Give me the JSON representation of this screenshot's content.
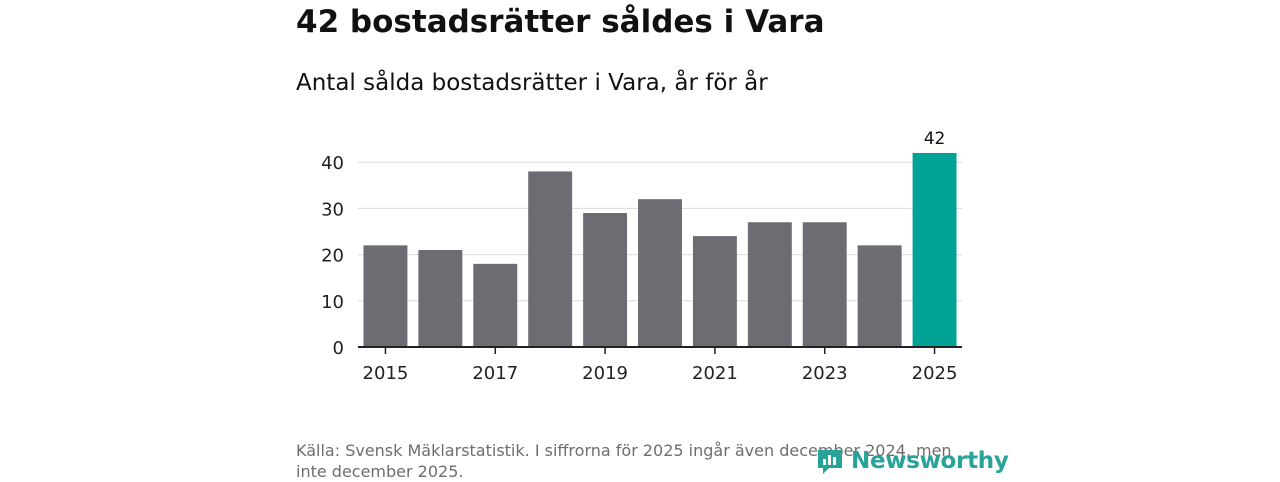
{
  "title": "42 bostadsrätter såldes i Vara",
  "subtitle": "Antal sålda bostadsrätter i Vara, år för år",
  "source": "Källa: Svensk Mäklarstatistik. I siffrorna för 2025 ingår även december 2024, men inte december 2025.",
  "logo": {
    "text": "Newsworthy",
    "icon": "newsworthy-logo-icon"
  },
  "colors": {
    "bar": "#6d6c72",
    "highlight": "#00a396",
    "grid": "#dcdcdc",
    "axis": "#222222",
    "logo": "#27a39a"
  },
  "chart_data": {
    "type": "bar",
    "title": "Antal sålda bostadsrätter i Vara, år för år",
    "categories": [
      "2015",
      "2016",
      "2017",
      "2018",
      "2019",
      "2020",
      "2021",
      "2022",
      "2023",
      "2024",
      "2025"
    ],
    "values": [
      22,
      21,
      18,
      38,
      29,
      32,
      24,
      27,
      27,
      22,
      42
    ],
    "highlight_index": 10,
    "highlight_label": "42",
    "yticks": [
      0,
      10,
      20,
      30,
      40
    ],
    "xticks": [
      "2015",
      "2017",
      "2019",
      "2021",
      "2023",
      "2025"
    ],
    "ylim": [
      0,
      42
    ],
    "xlabel": "",
    "ylabel": "",
    "grid": true
  }
}
